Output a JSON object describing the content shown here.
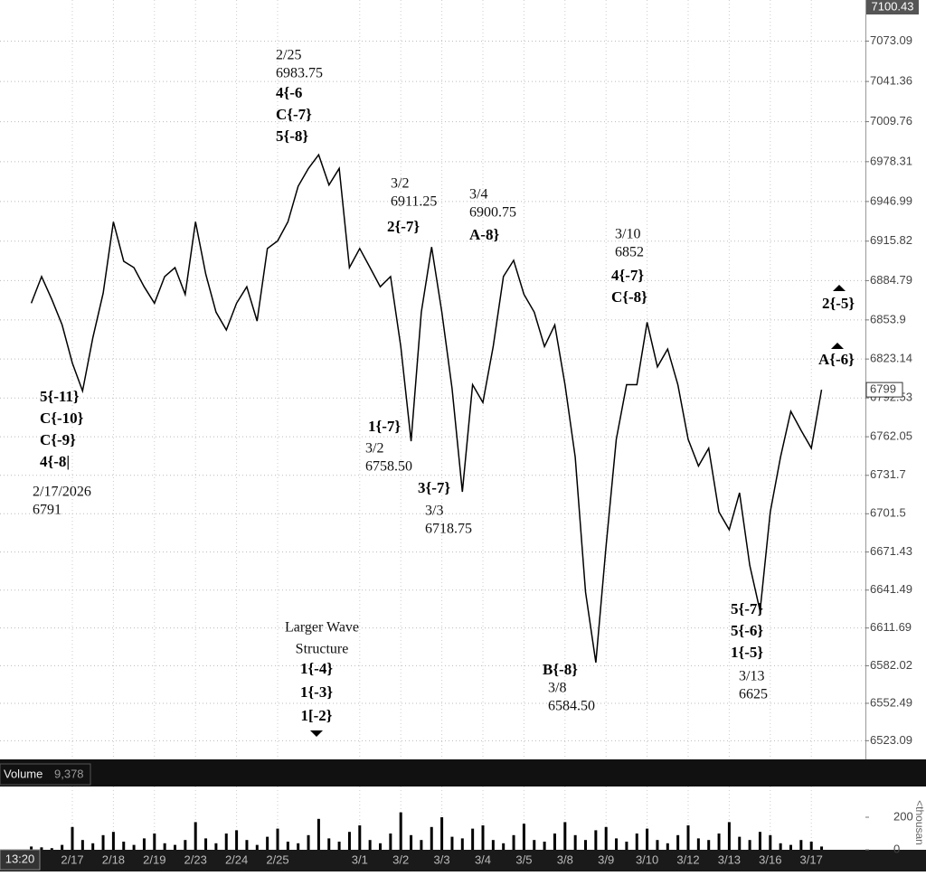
{
  "time": "13:20",
  "chart_data": [
    {
      "type": "line",
      "color": "#000",
      "grid": true,
      "ylim": [
        6508.4,
        7100.43
      ],
      "yticks": [
        6523.09,
        6552.49,
        6582.02,
        6611.69,
        6641.49,
        6671.43,
        6701.5,
        6731.7,
        6762.05,
        6792.53,
        6823.14,
        6853.9,
        6884.79,
        6915.82,
        6946.99,
        6978.31,
        7009.76,
        7041.36,
        7073.09
      ],
      "last_price": 6799,
      "categories": [
        null,
        null,
        null,
        null,
        "2/17",
        null,
        null,
        null,
        "2/18",
        null,
        null,
        null,
        "2/19",
        null,
        null,
        null,
        "2/23",
        null,
        null,
        null,
        "2/24",
        null,
        null,
        null,
        "2/25",
        null,
        null,
        null,
        null,
        null,
        null,
        null,
        "3/1",
        null,
        null,
        null,
        "3/2",
        null,
        null,
        null,
        "3/3",
        null,
        null,
        null,
        "3/4",
        null,
        null,
        null,
        "3/5",
        null,
        null,
        null,
        "3/8",
        null,
        null,
        null,
        "3/9",
        null,
        null,
        null,
        "3/10",
        null,
        null,
        null,
        "3/12",
        null,
        null,
        null,
        "3/13",
        null,
        null,
        null,
        "3/16",
        null,
        null,
        null,
        "3/17",
        null,
        null,
        null
      ],
      "values": [
        6867,
        6888,
        6870,
        6850,
        6820,
        6798,
        6840,
        6875,
        6931,
        6900,
        6895,
        6880,
        6867,
        6888,
        6895,
        6874,
        6931,
        6890,
        6860,
        6846,
        6867,
        6880,
        6853,
        6910,
        6916,
        6931,
        6959,
        6973,
        6983.75,
        6960,
        6973,
        6895,
        6910,
        6895,
        6880,
        6888,
        6833,
        6758.5,
        6860,
        6911.25,
        6860,
        6800,
        6718.75,
        6803,
        6789,
        6833,
        6888,
        6900.75,
        6874,
        6860,
        6833,
        6850,
        6803,
        6746,
        6640,
        6584.5,
        6676,
        6760,
        6803,
        6803,
        6852,
        6817,
        6831,
        6803,
        6760,
        6739,
        6753,
        6703,
        6689,
        6718,
        6661,
        6625,
        6703,
        6746,
        6782,
        6767,
        6753,
        6799,
        null,
        null
      ],
      "annotations": [
        {
          "bold": false,
          "lines": [
            "2/25",
            "6983.75"
          ]
        },
        {
          "bold": true,
          "lines": [
            "4{-6",
            "C{-7}",
            "5{-8}"
          ]
        },
        {
          "bold": false,
          "lines": [
            "3/2",
            "6911.25"
          ]
        },
        {
          "bold": true,
          "lines": [
            "2{-7}"
          ]
        },
        {
          "bold": false,
          "lines": [
            "3/4",
            "6900.75"
          ]
        },
        {
          "bold": true,
          "lines": [
            "A-8}"
          ]
        },
        {
          "bold": false,
          "lines": [
            "3/10",
            "6852"
          ]
        },
        {
          "bold": true,
          "lines": [
            "4{-7}",
            "C{-8}"
          ]
        },
        {
          "bold": true,
          "lines": [
            "2{-5}"
          ]
        },
        {
          "bold": true,
          "lines": [
            "A{-6}"
          ]
        },
        {
          "bold": true,
          "lines": [
            "5{-11}",
            "C{-10}",
            "C{-9}",
            "4{-8|"
          ]
        },
        {
          "bold": false,
          "lines": [
            "2/17/2026",
            "6791"
          ]
        },
        {
          "bold": true,
          "lines": [
            "1{-7}"
          ]
        },
        {
          "bold": false,
          "lines": [
            "3/2",
            "6758.50"
          ]
        },
        {
          "bold": true,
          "lines": [
            "3{-7}"
          ]
        },
        {
          "bold": false,
          "lines": [
            "3/3",
            "6718.75"
          ]
        },
        {
          "bold": false,
          "lines": [
            "Larger Wave",
            "Structure"
          ]
        },
        {
          "bold": true,
          "lines": [
            "1{-4}",
            "1{-3}",
            "1[-2}"
          ]
        },
        {
          "bold": true,
          "lines": [
            "B{-8}"
          ]
        },
        {
          "bold": false,
          "lines": [
            "3/8",
            "6584.50"
          ]
        },
        {
          "bold": true,
          "lines": [
            "5{-7}",
            "5{-6}",
            "1{-5}"
          ]
        },
        {
          "bold": false,
          "lines": [
            "3/13",
            "6625"
          ]
        }
      ]
    },
    {
      "type": "bar",
      "title": "Volume",
      "value_label": "9,378",
      "ylabel": "<thousan",
      "color": "#000",
      "ylim": [
        0,
        389
      ],
      "yticks": [
        0,
        200
      ],
      "values": [
        20,
        15,
        10,
        30,
        140,
        60,
        40,
        90,
        110,
        50,
        30,
        70,
        100,
        40,
        30,
        60,
        170,
        70,
        40,
        100,
        120,
        60,
        30,
        80,
        130,
        50,
        40,
        90,
        190,
        70,
        50,
        110,
        150,
        60,
        40,
        100,
        230,
        90,
        60,
        140,
        200,
        80,
        70,
        130,
        150,
        60,
        40,
        90,
        160,
        60,
        50,
        100,
        170,
        90,
        60,
        120,
        140,
        70,
        50,
        100,
        130,
        60,
        40,
        90,
        150,
        70,
        60,
        100,
        170,
        80,
        60,
        110,
        90,
        40,
        30,
        60,
        50,
        20,
        null,
        null
      ]
    }
  ]
}
